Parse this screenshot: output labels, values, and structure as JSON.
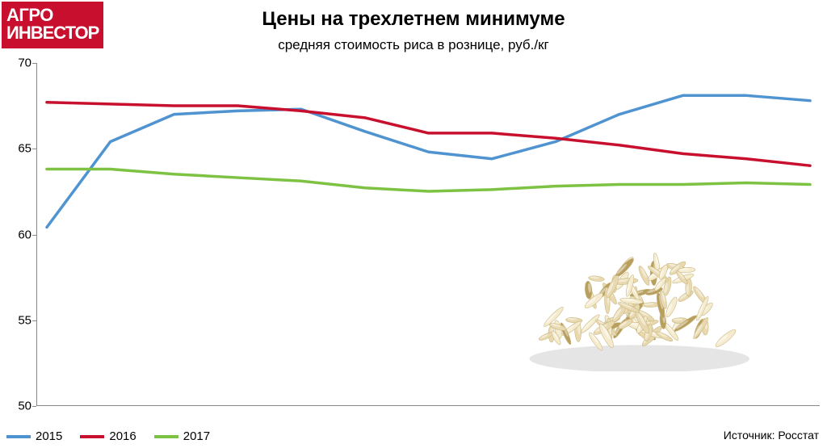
{
  "logo": {
    "line1": "АГРО",
    "line2": "ИНВЕСТОР",
    "bg": "#c8102e",
    "fg": "#ffffff"
  },
  "title": {
    "text": "Цены на трехлетнем минимуме",
    "fontsize": 24
  },
  "subtitle": {
    "text": "средняя стоимость риса в рознице, руб./кг",
    "fontsize": 17
  },
  "chart": {
    "type": "line",
    "background_color": "#ffffff",
    "axis_color": "#888888",
    "ylim": [
      50,
      70
    ],
    "yticks": [
      50,
      55,
      60,
      65,
      70
    ],
    "ytick_fontsize": 15,
    "x_count": 12,
    "line_width": 3.5,
    "series": [
      {
        "name": "2015",
        "color": "#4f93d1",
        "values": [
          60.4,
          65.4,
          67.0,
          67.2,
          67.3,
          66.0,
          64.8,
          64.4,
          65.4,
          67.0,
          68.1,
          68.1,
          67.8
        ]
      },
      {
        "name": "2016",
        "color": "#c8102e",
        "values": [
          67.7,
          67.6,
          67.5,
          67.5,
          67.2,
          66.8,
          65.9,
          65.9,
          65.6,
          65.2,
          64.7,
          64.4,
          64.0
        ]
      },
      {
        "name": "2017",
        "color": "#7dc242",
        "values": [
          63.8,
          63.8,
          63.5,
          63.3,
          63.1,
          62.7,
          62.5,
          62.6,
          62.8,
          62.9,
          62.9,
          63.0,
          62.9
        ]
      }
    ]
  },
  "legend": {
    "items": [
      {
        "label": "2015",
        "color": "#4f93d1"
      },
      {
        "label": "2016",
        "color": "#c8102e"
      },
      {
        "label": "2017",
        "color": "#7dc242"
      }
    ],
    "fontsize": 15
  },
  "source": {
    "prefix": "Источник: ",
    "name": "Росстат",
    "fontsize": 14
  },
  "rice_image": {
    "left_pct": 60,
    "top_pct": 45,
    "width_pct": 34,
    "height_pct": 45,
    "grain_fill": "#e8d9b0",
    "grain_stroke": "#c9b77f",
    "highlight": "#f5ecd0",
    "shadow": "#b89f5e"
  }
}
